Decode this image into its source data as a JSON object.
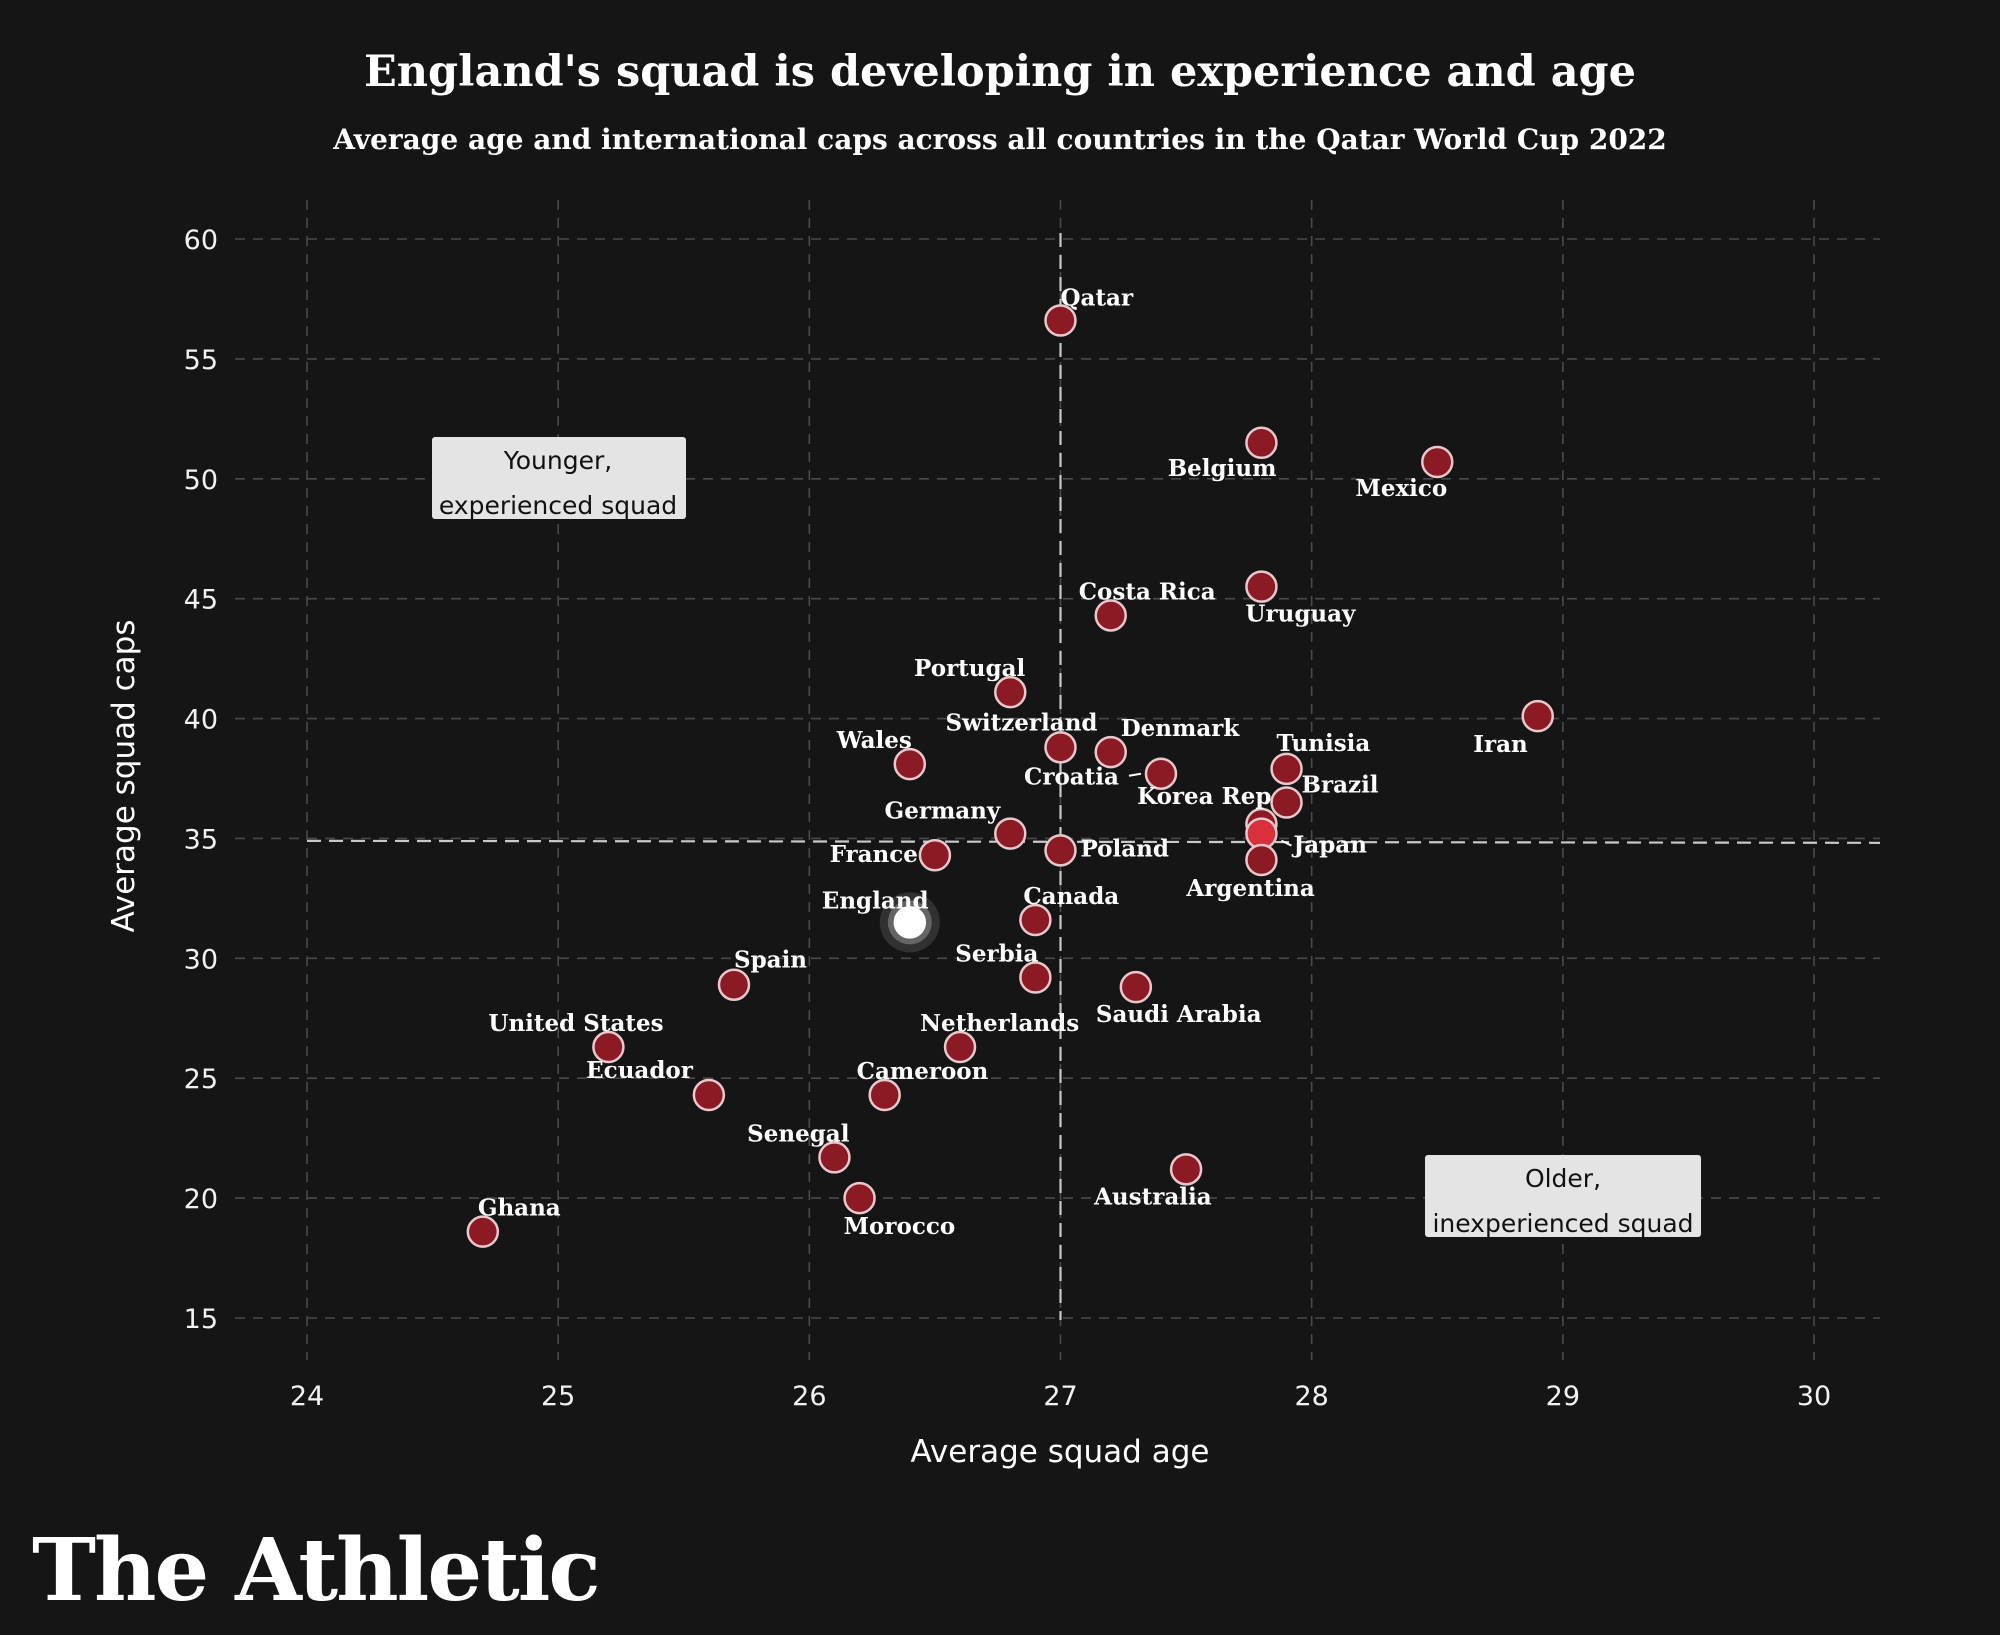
{
  "chart_data": {
    "type": "scatter",
    "title": "England's squad is developing in experience and age",
    "subtitle": "Average age and international caps across all countries in the Qatar World Cup 2022",
    "xlabel": "Average squad age",
    "ylabel": "Average squad caps",
    "xlim": [
      24,
      30
    ],
    "ylim": [
      15,
      60
    ],
    "xticks": [
      "24",
      "25",
      "26",
      "27",
      "28",
      "29",
      "30"
    ],
    "yticks": [
      "15",
      "20",
      "25",
      "30",
      "35",
      "40",
      "45",
      "50",
      "55",
      "60"
    ],
    "reference_lines": {
      "x": 27.0,
      "y": 34.9
    },
    "highlight": "England",
    "points": [
      {
        "name": "Qatar",
        "x": 27.0,
        "y": 56.6
      },
      {
        "name": "Belgium",
        "x": 27.8,
        "y": 51.5
      },
      {
        "name": "Mexico",
        "x": 28.5,
        "y": 50.7
      },
      {
        "name": "Costa Rica",
        "x": 27.2,
        "y": 44.3
      },
      {
        "name": "Uruguay",
        "x": 27.8,
        "y": 45.5
      },
      {
        "name": "Portugal",
        "x": 26.8,
        "y": 41.1
      },
      {
        "name": "Iran",
        "x": 28.9,
        "y": 40.1
      },
      {
        "name": "Switzerland",
        "x": 27.0,
        "y": 38.8
      },
      {
        "name": "Denmark",
        "x": 27.2,
        "y": 38.6
      },
      {
        "name": "Wales",
        "x": 26.4,
        "y": 38.1
      },
      {
        "name": "Tunisia",
        "x": 27.9,
        "y": 37.9
      },
      {
        "name": "Croatia",
        "x": 27.4,
        "y": 37.7
      },
      {
        "name": "Brazil",
        "x": 27.9,
        "y": 36.5
      },
      {
        "name": "Korea Rep",
        "x": 27.8,
        "y": 35.6
      },
      {
        "name": "Japan",
        "x": 27.8,
        "y": 35.2
      },
      {
        "name": "Germany",
        "x": 26.8,
        "y": 35.2
      },
      {
        "name": "Poland",
        "x": 27.0,
        "y": 34.5
      },
      {
        "name": "France",
        "x": 26.5,
        "y": 34.3
      },
      {
        "name": "Argentina",
        "x": 27.8,
        "y": 34.1
      },
      {
        "name": "England",
        "x": 26.4,
        "y": 31.5
      },
      {
        "name": "Canada",
        "x": 26.9,
        "y": 31.6
      },
      {
        "name": "Serbia",
        "x": 26.9,
        "y": 29.2
      },
      {
        "name": "Spain",
        "x": 25.7,
        "y": 28.9
      },
      {
        "name": "Saudi Arabia",
        "x": 27.3,
        "y": 28.8
      },
      {
        "name": "Netherlands",
        "x": 26.6,
        "y": 26.3
      },
      {
        "name": "United States",
        "x": 25.2,
        "y": 26.3
      },
      {
        "name": "Ecuador",
        "x": 25.6,
        "y": 24.3
      },
      {
        "name": "Cameroon",
        "x": 26.3,
        "y": 24.3
      },
      {
        "name": "Senegal",
        "x": 26.1,
        "y": 21.7
      },
      {
        "name": "Australia",
        "x": 27.5,
        "y": 21.2
      },
      {
        "name": "Morocco",
        "x": 26.2,
        "y": 20.0
      },
      {
        "name": "Ghana",
        "x": 24.7,
        "y": 18.6
      }
    ],
    "annotations": [
      {
        "lines": [
          "Younger,",
          "experienced squad"
        ],
        "quadrant": "top-left"
      },
      {
        "lines": [
          "Older,",
          "inexperienced squad"
        ],
        "quadrant": "bottom-right"
      }
    ]
  },
  "brand": "The Athletic"
}
